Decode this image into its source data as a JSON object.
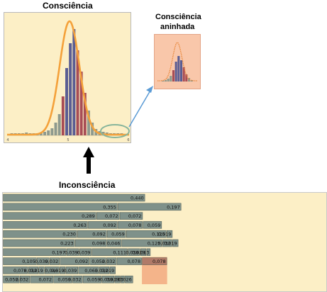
{
  "main_chart": {
    "title": "Consciência",
    "axis_ticks": [
      "4",
      "5",
      "6"
    ],
    "colors": {
      "curve": "#f4a13a",
      "bars_gray": "#8e9a8e",
      "bars_red": "#a84d55",
      "bars_blue": "#5a5d93",
      "highlight_ellipse": "#88b59b",
      "background": "#fcefc6"
    }
  },
  "nested_chart": {
    "title_line1": "Consciência",
    "title_line2": "aninhada",
    "colors": {
      "curve": "#e8873a",
      "background": "#f9c7aa"
    }
  },
  "arrow_label": "Inconsciência",
  "connector_color": "#5b9bd5",
  "step_diagram": {
    "rows": [
      {
        "cells": [
          "0,440"
        ]
      },
      {
        "cells": [
          "0,355",
          "0,197"
        ]
      },
      {
        "cells": [
          "0,289",
          "0,072",
          "0,072"
        ]
      },
      {
        "cells": [
          "0,263",
          "0,092",
          "0,078",
          "0,059"
        ]
      },
      {
        "cells": [
          "0,230",
          "0,092",
          "0,059",
          "0,125",
          "0,019"
        ]
      },
      {
        "cells": [
          "0,223",
          "0,098",
          "0,046",
          "0,125",
          "0,032",
          "0,019"
        ]
      },
      {
        "cells": [
          "0,197",
          "0,039",
          "0,039",
          "0,111",
          "0,039",
          "0,019",
          "0,013"
        ]
      },
      {
        "cells": [
          "0,105",
          "0,039",
          "0,032",
          "0,092",
          "0,052",
          "0,032",
          "0,078",
          "0,078"
        ]
      },
      {
        "cells": [
          "0,078",
          "0,032",
          "0,019",
          "0,046",
          "0,019",
          "0,039",
          "0,065",
          "0,032",
          "0,019"
        ]
      },
      {
        "cells": [
          "0,052",
          "0,032",
          "0,072",
          "0,059",
          "0,032",
          "0,059",
          "0,039",
          "0,019",
          "0,013",
          "0,026"
        ]
      }
    ],
    "highlight": {
      "row_from": 7,
      "row_to": 9,
      "column": 8
    },
    "colors": {
      "bar": "#7f918a",
      "bar_stroke": "#4d5a55",
      "highlight_fill": "#f4b48a",
      "highlight_bar": "#b07a68",
      "background": "#fcefc6"
    }
  }
}
